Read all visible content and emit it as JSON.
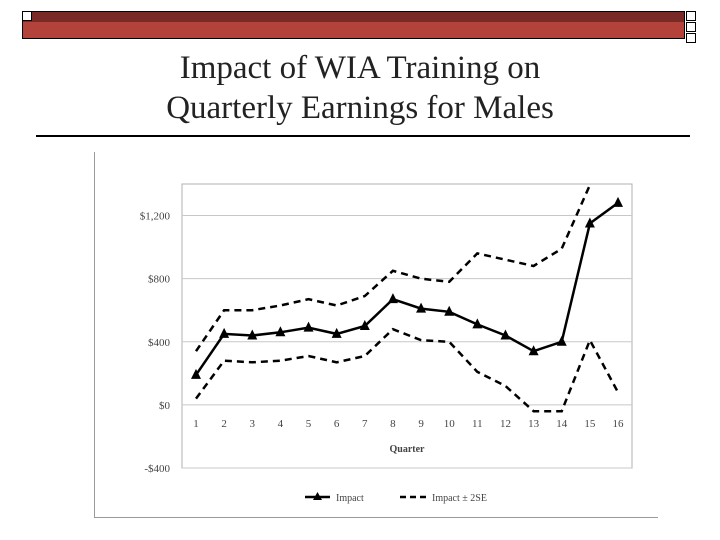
{
  "slide": {
    "title_line1": "Impact of WIA Training on",
    "title_line2": "Quarterly Earnings for Males"
  },
  "colors": {
    "bar_dark": "#7a2a26",
    "bar_light": "#b3423a",
    "series": "#000000"
  },
  "chart_data": {
    "type": "line",
    "x": [
      1,
      2,
      3,
      4,
      5,
      6,
      7,
      8,
      9,
      10,
      11,
      12,
      13,
      14,
      15,
      16
    ],
    "xlabel": "Quarter",
    "ylim": [
      -400,
      1400
    ],
    "yticks": [
      -400,
      0,
      400,
      800,
      1200
    ],
    "ytick_labels": [
      "-$400",
      "$0",
      "$400",
      "$800",
      "$1,200"
    ],
    "legend_position": "bottom",
    "series": [
      {
        "name": "Impact",
        "style": "solid-triangle",
        "values": [
          190,
          450,
          440,
          460,
          490,
          450,
          500,
          670,
          610,
          590,
          510,
          440,
          340,
          400,
          1150,
          1280
        ]
      },
      {
        "name": "Impact ± 2SE",
        "style": "dashed",
        "upper": [
          340,
          600,
          600,
          630,
          670,
          630,
          690,
          850,
          800,
          780,
          960,
          920,
          880,
          990,
          1400,
          null
        ],
        "lower": [
          40,
          280,
          270,
          280,
          310,
          270,
          310,
          480,
          410,
          400,
          210,
          120,
          -40,
          -40,
          410,
          80
        ]
      }
    ]
  }
}
